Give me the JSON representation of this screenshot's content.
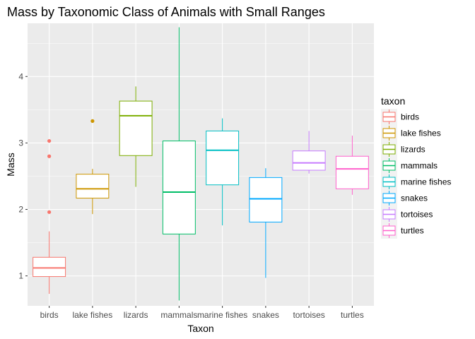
{
  "chart_data": {
    "type": "boxplot",
    "title": "Mass by Taxonomic Class of Animals with Small Ranges",
    "xlabel": "Taxon",
    "ylabel": "Mass",
    "ylim": [
      0.55,
      4.8
    ],
    "yticks": [
      1,
      2,
      3,
      4
    ],
    "grid": true,
    "legend": {
      "title": "taxon",
      "position": "right"
    },
    "categories": [
      "birds",
      "lake fishes",
      "lizards",
      "mammals",
      "marine fishes",
      "snakes",
      "tortoises",
      "turtles"
    ],
    "colors": [
      "#F8766D",
      "#CD9600",
      "#7CAE00",
      "#00BE67",
      "#00BFC4",
      "#00A9FF",
      "#C77CFF",
      "#FF61CC"
    ],
    "boxes": [
      {
        "name": "birds",
        "min": 0.73,
        "q1": 0.99,
        "median": 1.12,
        "q3": 1.28,
        "max": 1.67,
        "outliers": [
          1.96,
          2.8,
          3.03
        ]
      },
      {
        "name": "lake fishes",
        "min": 1.93,
        "q1": 2.17,
        "median": 2.31,
        "q3": 2.53,
        "max": 2.61,
        "outliers": [
          3.33
        ]
      },
      {
        "name": "lizards",
        "min": 2.34,
        "q1": 2.81,
        "median": 3.41,
        "q3": 3.63,
        "max": 3.85,
        "outliers": []
      },
      {
        "name": "mammals",
        "min": 0.63,
        "q1": 1.63,
        "median": 2.26,
        "q3": 3.03,
        "max": 4.74,
        "outliers": []
      },
      {
        "name": "marine fishes",
        "min": 1.76,
        "q1": 2.37,
        "median": 2.89,
        "q3": 3.18,
        "max": 3.37,
        "outliers": []
      },
      {
        "name": "snakes",
        "min": 0.97,
        "q1": 1.81,
        "median": 2.16,
        "q3": 2.48,
        "max": 2.62,
        "outliers": []
      },
      {
        "name": "tortoises",
        "min": 2.54,
        "q1": 2.59,
        "median": 2.7,
        "q3": 2.88,
        "max": 3.18,
        "outliers": []
      },
      {
        "name": "turtles",
        "min": 2.22,
        "q1": 2.31,
        "median": 2.61,
        "q3": 2.8,
        "max": 3.11,
        "outliers": []
      }
    ]
  }
}
